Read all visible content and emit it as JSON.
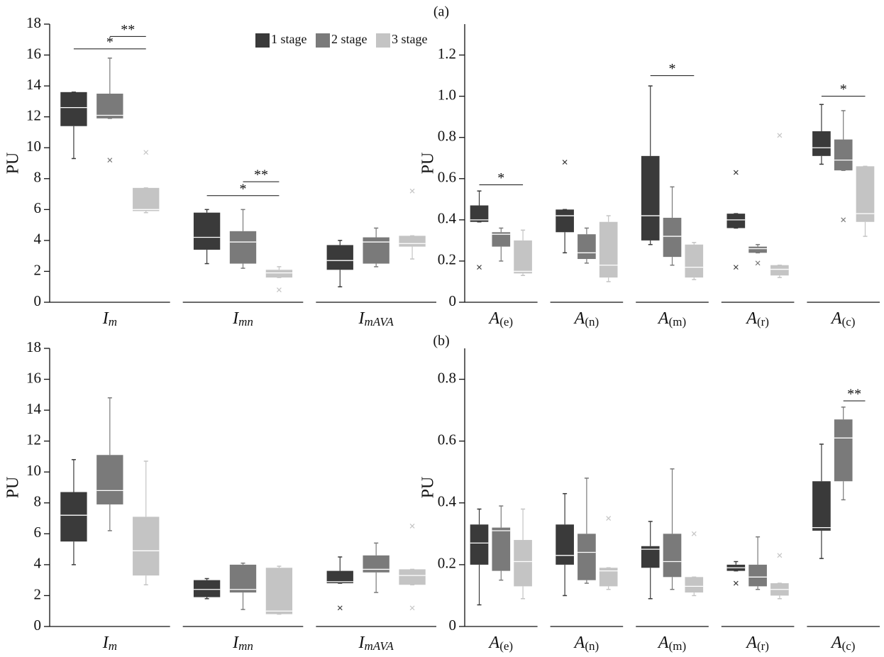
{
  "figure_labels": [
    "(a)",
    "(b)"
  ],
  "chart_data": [
    {
      "type": "box",
      "ylabel": "PU",
      "ylim": [
        0,
        18
      ],
      "yticks": [
        0,
        2,
        4,
        6,
        8,
        10,
        12,
        14,
        16,
        18
      ],
      "subscript_italic": true,
      "legend": "upper right",
      "categories": [
        {
          "base": "I",
          "sub": "m"
        },
        {
          "base": "I",
          "sub": "mn"
        },
        {
          "base": "I",
          "sub": "mAVA"
        }
      ],
      "series": [
        {
          "name": "1 stage",
          "color": "#3a3a3a",
          "values": [
            {
              "min": 9.3,
              "q1": 11.4,
              "median": 12.6,
              "q3": 13.6,
              "max": 13.6
            },
            {
              "min": 2.5,
              "q1": 3.4,
              "median": 4.2,
              "q3": 5.8,
              "max": 6.0
            },
            {
              "min": 1.0,
              "q1": 2.1,
              "median": 2.7,
              "q3": 3.7,
              "max": 4.0
            }
          ]
        },
        {
          "name": "2 stage",
          "color": "#7a7a7a",
          "values": [
            {
              "min": 11.9,
              "q1": 11.9,
              "median": 12.1,
              "q3": 13.5,
              "max": 15.8,
              "outliers": [
                9.2
              ]
            },
            {
              "min": 2.2,
              "q1": 2.5,
              "median": 3.9,
              "q3": 4.6,
              "max": 6.0
            },
            {
              "min": 2.3,
              "q1": 2.5,
              "median": 3.9,
              "q3": 4.2,
              "max": 4.8
            }
          ]
        },
        {
          "name": "3 stage",
          "color": "#c4c4c4",
          "values": [
            {
              "min": 5.8,
              "q1": 5.9,
              "median": 6.0,
              "q3": 7.4,
              "max": 7.4,
              "outliers": [
                9.7
              ]
            },
            {
              "min": 1.6,
              "q1": 1.6,
              "median": 1.9,
              "q3": 2.1,
              "max": 2.3,
              "outliers": [
                0.8
              ]
            },
            {
              "min": 2.8,
              "q1": 3.6,
              "median": 3.8,
              "q3": 4.3,
              "max": 4.3,
              "outliers": [
                7.2
              ]
            }
          ]
        }
      ],
      "annotations": [
        {
          "text": "*",
          "category": 0,
          "from": 0,
          "to": 2,
          "y": 16.4
        },
        {
          "text": "**",
          "category": 0,
          "from": 1,
          "to": 2,
          "y": 17.2
        },
        {
          "text": "*",
          "category": 1,
          "from": 0,
          "to": 2,
          "y": 6.9
        },
        {
          "text": "**",
          "category": 1,
          "from": 1,
          "to": 2,
          "y": 7.8
        }
      ]
    },
    {
      "type": "box",
      "ylabel": "PU",
      "ylim": [
        0,
        1.35
      ],
      "yticks": [
        0,
        0.2,
        0.4,
        0.6,
        0.8,
        {
          "value": 1,
          "label": "1.0"
        },
        1.2
      ],
      "subscript_italic": false,
      "categories": [
        {
          "base": "A",
          "sub": "(e)"
        },
        {
          "base": "A",
          "sub": "(n)"
        },
        {
          "base": "A",
          "sub": "(m)"
        },
        {
          "base": "A",
          "sub": "(r)"
        },
        {
          "base": "A",
          "sub": "(c)"
        }
      ],
      "series": [
        {
          "color": "#3a3a3a",
          "values": [
            {
              "min": 0.39,
              "q1": 0.39,
              "median": 0.4,
              "q3": 0.47,
              "max": 0.54,
              "outliers": [
                0.17
              ]
            },
            {
              "min": 0.24,
              "q1": 0.34,
              "median": 0.42,
              "q3": 0.45,
              "max": 0.45,
              "outliers": [
                0.68
              ]
            },
            {
              "min": 0.28,
              "q1": 0.3,
              "median": 0.42,
              "q3": 0.71,
              "max": 1.05
            },
            {
              "min": 0.36,
              "q1": 0.36,
              "median": 0.4,
              "q3": 0.43,
              "max": 0.43,
              "outliers": [
                0.63,
                0.17
              ]
            },
            {
              "min": 0.67,
              "q1": 0.71,
              "median": 0.75,
              "q3": 0.83,
              "max": 0.96
            }
          ]
        },
        {
          "color": "#7a7a7a",
          "values": [
            {
              "min": 0.2,
              "q1": 0.27,
              "median": 0.33,
              "q3": 0.34,
              "max": 0.36
            },
            {
              "min": 0.19,
              "q1": 0.21,
              "median": 0.24,
              "q3": 0.33,
              "max": 0.36
            },
            {
              "min": 0.18,
              "q1": 0.22,
              "median": 0.32,
              "q3": 0.41,
              "max": 0.56
            },
            {
              "min": 0.24,
              "q1": 0.24,
              "median": 0.26,
              "q3": 0.27,
              "max": 0.28,
              "outliers": [
                0.19
              ]
            },
            {
              "min": 0.64,
              "q1": 0.64,
              "median": 0.69,
              "q3": 0.79,
              "max": 0.93,
              "outliers": [
                0.4
              ]
            }
          ]
        },
        {
          "color": "#c4c4c4",
          "values": [
            {
              "min": 0.13,
              "q1": 0.14,
              "median": 0.15,
              "q3": 0.3,
              "max": 0.35
            },
            {
              "min": 0.1,
              "q1": 0.12,
              "median": 0.18,
              "q3": 0.39,
              "max": 0.42
            },
            {
              "min": 0.11,
              "q1": 0.12,
              "median": 0.17,
              "q3": 0.28,
              "max": 0.29
            },
            {
              "min": 0.12,
              "q1": 0.13,
              "median": 0.16,
              "q3": 0.18,
              "max": 0.18,
              "outliers": [
                0.81
              ]
            },
            {
              "min": 0.32,
              "q1": 0.39,
              "median": 0.43,
              "q3": 0.66,
              "max": 0.66
            }
          ]
        }
      ],
      "annotations": [
        {
          "text": "*",
          "category": 0,
          "from": 0,
          "to": 2,
          "y": 0.57
        },
        {
          "text": "*",
          "category": 2,
          "from": 0,
          "to": 2,
          "y": 1.1
        },
        {
          "text": "*",
          "category": 4,
          "from": 0,
          "to": 2,
          "y": 1.0
        }
      ]
    },
    {
      "type": "box",
      "ylabel": "PU",
      "ylim": [
        0,
        18
      ],
      "yticks": [
        0,
        2,
        4,
        6,
        8,
        10,
        12,
        14,
        16,
        18
      ],
      "subscript_italic": true,
      "categories": [
        {
          "base": "I",
          "sub": "m"
        },
        {
          "base": "I",
          "sub": "mn"
        },
        {
          "base": "I",
          "sub": "mAVA"
        }
      ],
      "series": [
        {
          "color": "#3a3a3a",
          "values": [
            {
              "min": 4.0,
              "q1": 5.5,
              "median": 7.2,
              "q3": 8.7,
              "max": 10.8
            },
            {
              "min": 1.8,
              "q1": 1.9,
              "median": 2.4,
              "q3": 3.0,
              "max": 3.1
            },
            {
              "min": 2.8,
              "q1": 2.8,
              "median": 2.9,
              "q3": 3.6,
              "max": 4.5,
              "outliers": [
                1.2
              ]
            }
          ]
        },
        {
          "color": "#7a7a7a",
          "values": [
            {
              "min": 6.2,
              "q1": 7.9,
              "median": 8.8,
              "q3": 11.1,
              "max": 14.8
            },
            {
              "min": 1.1,
              "q1": 2.2,
              "median": 2.4,
              "q3": 4.0,
              "max": 4.1
            },
            {
              "min": 2.2,
              "q1": 3.5,
              "median": 3.7,
              "q3": 4.6,
              "max": 5.4
            }
          ]
        },
        {
          "color": "#c4c4c4",
          "values": [
            {
              "min": 2.7,
              "q1": 3.3,
              "median": 4.9,
              "q3": 7.1,
              "max": 10.7
            },
            {
              "min": 0.8,
              "q1": 0.8,
              "median": 1.0,
              "q3": 3.8,
              "max": 3.9
            },
            {
              "min": 2.7,
              "q1": 2.7,
              "median": 3.3,
              "q3": 3.7,
              "max": 3.7,
              "outliers": [
                6.5,
                1.2
              ]
            }
          ]
        }
      ]
    },
    {
      "type": "box",
      "ylabel": "PU",
      "ylim": [
        0,
        0.9
      ],
      "yticks": [
        0,
        0.2,
        0.4,
        0.6,
        0.8
      ],
      "subscript_italic": false,
      "categories": [
        {
          "base": "A",
          "sub": "(e)"
        },
        {
          "base": "A",
          "sub": "(n)"
        },
        {
          "base": "A",
          "sub": "(m)"
        },
        {
          "base": "A",
          "sub": "(r)"
        },
        {
          "base": "A",
          "sub": "(c)"
        }
      ],
      "series": [
        {
          "color": "#3a3a3a",
          "values": [
            {
              "min": 0.07,
              "q1": 0.2,
              "median": 0.27,
              "q3": 0.33,
              "max": 0.38
            },
            {
              "min": 0.1,
              "q1": 0.2,
              "median": 0.23,
              "q3": 0.33,
              "max": 0.43
            },
            {
              "min": 0.09,
              "q1": 0.19,
              "median": 0.25,
              "q3": 0.26,
              "max": 0.34
            },
            {
              "min": 0.18,
              "q1": 0.18,
              "median": 0.19,
              "q3": 0.2,
              "max": 0.21,
              "outliers": [
                0.14
              ]
            },
            {
              "min": 0.22,
              "q1": 0.31,
              "median": 0.32,
              "q3": 0.47,
              "max": 0.59
            }
          ]
        },
        {
          "color": "#7a7a7a",
          "values": [
            {
              "min": 0.15,
              "q1": 0.18,
              "median": 0.31,
              "q3": 0.32,
              "max": 0.39
            },
            {
              "min": 0.14,
              "q1": 0.15,
              "median": 0.24,
              "q3": 0.3,
              "max": 0.48
            },
            {
              "min": 0.12,
              "q1": 0.16,
              "median": 0.21,
              "q3": 0.3,
              "max": 0.51
            },
            {
              "min": 0.12,
              "q1": 0.13,
              "median": 0.16,
              "q3": 0.2,
              "max": 0.29
            },
            {
              "min": 0.41,
              "q1": 0.47,
              "median": 0.61,
              "q3": 0.67,
              "max": 0.71
            }
          ]
        },
        {
          "color": "#c4c4c4",
          "values": [
            {
              "min": 0.09,
              "q1": 0.13,
              "median": 0.21,
              "q3": 0.28,
              "max": 0.38
            },
            {
              "min": 0.12,
              "q1": 0.13,
              "median": 0.18,
              "q3": 0.19,
              "max": 0.19,
              "outliers": [
                0.35
              ]
            },
            {
              "min": 0.1,
              "q1": 0.11,
              "median": 0.13,
              "q3": 0.16,
              "max": 0.16,
              "outliers": [
                0.3
              ]
            },
            {
              "min": 0.09,
              "q1": 0.1,
              "median": 0.12,
              "q3": 0.14,
              "max": 0.14,
              "outliers": [
                0.23
              ]
            },
            null
          ]
        }
      ],
      "annotations": [
        {
          "text": "**",
          "category": 4,
          "from": 1,
          "to": 2,
          "y": 0.73
        }
      ]
    }
  ]
}
